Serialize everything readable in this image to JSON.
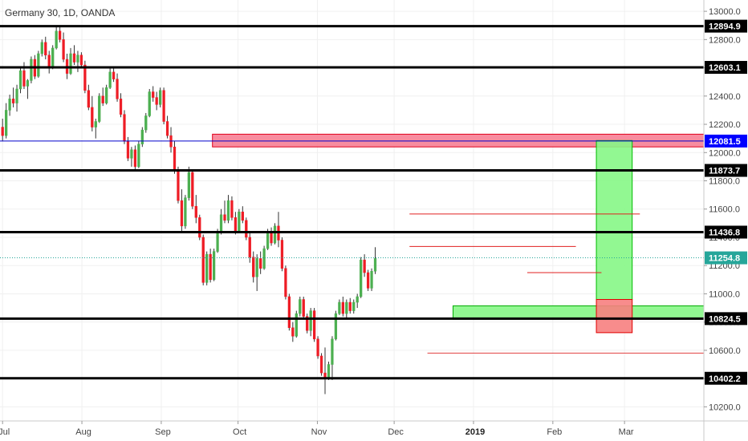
{
  "chart_data": {
    "type": "candlestick",
    "title": "Germany 30, 1D, OANDA",
    "xlabel": "",
    "ylabel": "",
    "ylim": [
      10100,
      13080
    ],
    "x_ticks": [
      {
        "label": "Jul",
        "day": 0,
        "bold": false
      },
      {
        "label": "Aug",
        "day": 31,
        "bold": false
      },
      {
        "label": "Sep",
        "day": 62,
        "bold": false
      },
      {
        "label": "Oct",
        "day": 92,
        "bold": false
      },
      {
        "label": "Nov",
        "day": 123,
        "bold": false
      },
      {
        "label": "Dec",
        "day": 153,
        "bold": false
      },
      {
        "label": "2019",
        "day": 184,
        "bold": true
      },
      {
        "label": "Feb",
        "day": 215,
        "bold": false
      },
      {
        "label": "Mar",
        "day": 243,
        "bold": false
      }
    ],
    "x_range_days": [
      -1,
      274
    ],
    "y_ticks": [
      10200,
      10400,
      10600,
      10800,
      11000,
      11200,
      11400,
      11600,
      11800,
      12000,
      12200,
      12400,
      12600,
      12800,
      13000
    ],
    "y_tick_labels": [
      "10200.0",
      "10400.0",
      "10600.0",
      "10800.0",
      "11000.0",
      "11200.0",
      "11400.0",
      "11600.0",
      "11800.0",
      "12000.0",
      "12200.0",
      "12400.0",
      "12600.0",
      "12800.0",
      "13000.0"
    ],
    "horizontal_levels": [
      {
        "value": 12894.9,
        "label": "12894.9",
        "color": "#000000",
        "label_bg": "#000000",
        "label_fg": "#ffffff",
        "width": 3
      },
      {
        "value": 12603.1,
        "label": "12603.1",
        "color": "#000000",
        "label_bg": "#000000",
        "label_fg": "#ffffff",
        "width": 3
      },
      {
        "value": 12081.5,
        "label": "12081.5",
        "color": "#0000cc",
        "label_bg": "#0000ff",
        "label_fg": "#ffffff",
        "width": 1
      },
      {
        "value": 11873.7,
        "label": "11873.7",
        "color": "#000000",
        "label_bg": "#000000",
        "label_fg": "#ffffff",
        "width": 3
      },
      {
        "value": 11436.8,
        "label": "11436.8",
        "color": "#000000",
        "label_bg": "#000000",
        "label_fg": "#ffffff",
        "width": 3
      },
      {
        "value": 10824.5,
        "label": "10824.5",
        "color": "#000000",
        "label_bg": "#000000",
        "label_fg": "#ffffff",
        "width": 3
      },
      {
        "value": 10402.2,
        "label": "10402.2",
        "color": "#000000",
        "label_bg": "#000000",
        "label_fg": "#ffffff",
        "width": 3
      }
    ],
    "last_price": {
      "value": 11254.8,
      "label": "11254.8",
      "color": "#26a69a",
      "label_bg": "#26a69a",
      "label_fg": "#ffffff"
    },
    "zones": [
      {
        "kind": "resistance",
        "day_from": 82,
        "day_to": 274,
        "price_from": 12040,
        "price_to": 12130,
        "fill": "#f77f95",
        "stroke": "#e0001b"
      },
      {
        "kind": "support",
        "day_from": 176,
        "day_to": 274,
        "price_from": 10820,
        "price_to": 10915,
        "fill": "#86f786",
        "stroke": "#00aa00"
      },
      {
        "kind": "target",
        "day_from": 232,
        "day_to": 246,
        "price_from": 10960,
        "price_to": 12085,
        "fill": "#86f786",
        "stroke": "#00bb00"
      },
      {
        "kind": "stop",
        "day_from": 232,
        "day_to": 246,
        "price_from": 10725,
        "price_to": 10960,
        "fill": "#f77f7f",
        "stroke": "#e00000"
      }
    ],
    "lines": [
      {
        "day_from": 159,
        "day_to": 249,
        "price": 11565,
        "color": "#e02020"
      },
      {
        "day_from": 159,
        "day_to": 224,
        "price": 11335,
        "color": "#e02020"
      },
      {
        "day_from": 205,
        "day_to": 234,
        "price": 11150,
        "color": "#e02020"
      },
      {
        "day_from": 166,
        "day_to": 274,
        "price": 10580,
        "color": "#e04040"
      }
    ],
    "ohlc_start_day": 0,
    "ohlc_step_days": 1.4,
    "candles": [
      [
        12180,
        12240,
        12080,
        12120
      ],
      [
        12120,
        12350,
        12100,
        12300
      ],
      [
        12300,
        12410,
        12260,
        12380
      ],
      [
        12380,
        12460,
        12320,
        12350
      ],
      [
        12350,
        12480,
        12290,
        12450
      ],
      [
        12450,
        12610,
        12420,
        12580
      ],
      [
        12580,
        12640,
        12450,
        12470
      ],
      [
        12470,
        12520,
        12380,
        12510
      ],
      [
        12510,
        12680,
        12490,
        12660
      ],
      [
        12660,
        12690,
        12520,
        12540
      ],
      [
        12540,
        12720,
        12530,
        12700
      ],
      [
        12700,
        12800,
        12680,
        12780
      ],
      [
        12780,
        12820,
        12660,
        12690
      ],
      [
        12690,
        12720,
        12560,
        12600
      ],
      [
        12600,
        12760,
        12590,
        12740
      ],
      [
        12740,
        12890,
        12730,
        12860
      ],
      [
        12860,
        12900,
        12780,
        12800
      ],
      [
        12800,
        12850,
        12640,
        12660
      ],
      [
        12660,
        12700,
        12520,
        12560
      ],
      [
        12560,
        12740,
        12550,
        12700
      ],
      [
        12700,
        12760,
        12620,
        12640
      ],
      [
        12640,
        12720,
        12570,
        12690
      ],
      [
        12690,
        12710,
        12600,
        12620
      ],
      [
        12620,
        12650,
        12420,
        12440
      ],
      [
        12440,
        12480,
        12300,
        12320
      ],
      [
        12320,
        12400,
        12150,
        12180
      ],
      [
        12180,
        12240,
        12100,
        12220
      ],
      [
        12220,
        12420,
        12210,
        12400
      ],
      [
        12400,
        12460,
        12330,
        12350
      ],
      [
        12350,
        12480,
        12340,
        12460
      ],
      [
        12460,
        12600,
        12450,
        12570
      ],
      [
        12570,
        12610,
        12500,
        12520
      ],
      [
        12520,
        12560,
        12360,
        12380
      ],
      [
        12380,
        12420,
        12250,
        12270
      ],
      [
        12270,
        12300,
        12060,
        12080
      ],
      [
        12080,
        12110,
        11940,
        11960
      ],
      [
        11960,
        12040,
        11900,
        12020
      ],
      [
        12020,
        12050,
        11880,
        11900
      ],
      [
        11900,
        12080,
        11890,
        12060
      ],
      [
        12060,
        12180,
        12040,
        12160
      ],
      [
        12160,
        12280,
        12140,
        12260
      ],
      [
        12260,
        12450,
        12250,
        12430
      ],
      [
        12430,
        12470,
        12360,
        12390
      ],
      [
        12390,
        12430,
        12300,
        12340
      ],
      [
        12340,
        12460,
        12320,
        12440
      ],
      [
        12440,
        12460,
        12200,
        12220
      ],
      [
        12220,
        12260,
        12100,
        12120
      ],
      [
        12120,
        12180,
        12000,
        12040
      ],
      [
        12040,
        12080,
        11850,
        11880
      ],
      [
        11880,
        11900,
        11640,
        11660
      ],
      [
        11660,
        11740,
        11440,
        11480
      ],
      [
        11480,
        11700,
        11460,
        11680
      ],
      [
        11680,
        11900,
        11660,
        11860
      ],
      [
        11860,
        11880,
        11600,
        11620
      ],
      [
        11620,
        11700,
        11500,
        11540
      ],
      [
        11540,
        11560,
        11380,
        11400
      ],
      [
        11400,
        11420,
        11060,
        11080
      ],
      [
        11080,
        11300,
        11060,
        11280
      ],
      [
        11280,
        11320,
        11080,
        11100
      ],
      [
        11100,
        11320,
        11090,
        11300
      ],
      [
        11300,
        11460,
        11290,
        11440
      ],
      [
        11440,
        11600,
        11420,
        11560
      ],
      [
        11560,
        11660,
        11500,
        11520
      ],
      [
        11520,
        11700,
        11500,
        11660
      ],
      [
        11660,
        11690,
        11520,
        11540
      ],
      [
        11540,
        11580,
        11420,
        11440
      ],
      [
        11440,
        11600,
        11430,
        11580
      ],
      [
        11580,
        11620,
        11500,
        11520
      ],
      [
        11520,
        11540,
        11380,
        11400
      ],
      [
        11400,
        11440,
        11220,
        11260
      ],
      [
        11260,
        11300,
        11080,
        11120
      ],
      [
        11120,
        11280,
        11020,
        11250
      ],
      [
        11250,
        11300,
        11140,
        11180
      ],
      [
        11180,
        11340,
        11170,
        11320
      ],
      [
        11320,
        11460,
        11310,
        11440
      ],
      [
        11440,
        11470,
        11340,
        11360
      ],
      [
        11360,
        11500,
        11350,
        11480
      ],
      [
        11480,
        11580,
        11330,
        11380
      ],
      [
        11380,
        11400,
        11160,
        11180
      ],
      [
        11180,
        11200,
        10960,
        10980
      ],
      [
        10980,
        11000,
        10740,
        10760
      ],
      [
        10760,
        10800,
        10660,
        10700
      ],
      [
        10700,
        10880,
        10690,
        10860
      ],
      [
        10860,
        10980,
        10840,
        10960
      ],
      [
        10960,
        10980,
        10820,
        10840
      ],
      [
        10840,
        10860,
        10720,
        10740
      ],
      [
        10740,
        10900,
        10700,
        10880
      ],
      [
        10880,
        10900,
        10660,
        10680
      ],
      [
        10680,
        10700,
        10540,
        10560
      ],
      [
        10560,
        10580,
        10420,
        10440
      ],
      [
        10440,
        10620,
        10290,
        10400
      ],
      [
        10400,
        10520,
        10390,
        10500
      ],
      [
        10500,
        10700,
        10390,
        10680
      ],
      [
        10680,
        10880,
        10670,
        10860
      ],
      [
        10860,
        10960,
        10850,
        10940
      ],
      [
        10940,
        10980,
        10840,
        10860
      ],
      [
        10860,
        10960,
        10820,
        10940
      ],
      [
        10940,
        10970,
        10860,
        10880
      ],
      [
        10880,
        10960,
        10860,
        10940
      ],
      [
        10940,
        11000,
        10900,
        10980
      ],
      [
        10980,
        11260,
        10970,
        11240
      ],
      [
        11240,
        11280,
        11120,
        11150
      ],
      [
        11150,
        11170,
        11020,
        11040
      ],
      [
        11040,
        11180,
        11020,
        11160
      ],
      [
        11160,
        11330,
        11140,
        11250
      ]
    ]
  }
}
